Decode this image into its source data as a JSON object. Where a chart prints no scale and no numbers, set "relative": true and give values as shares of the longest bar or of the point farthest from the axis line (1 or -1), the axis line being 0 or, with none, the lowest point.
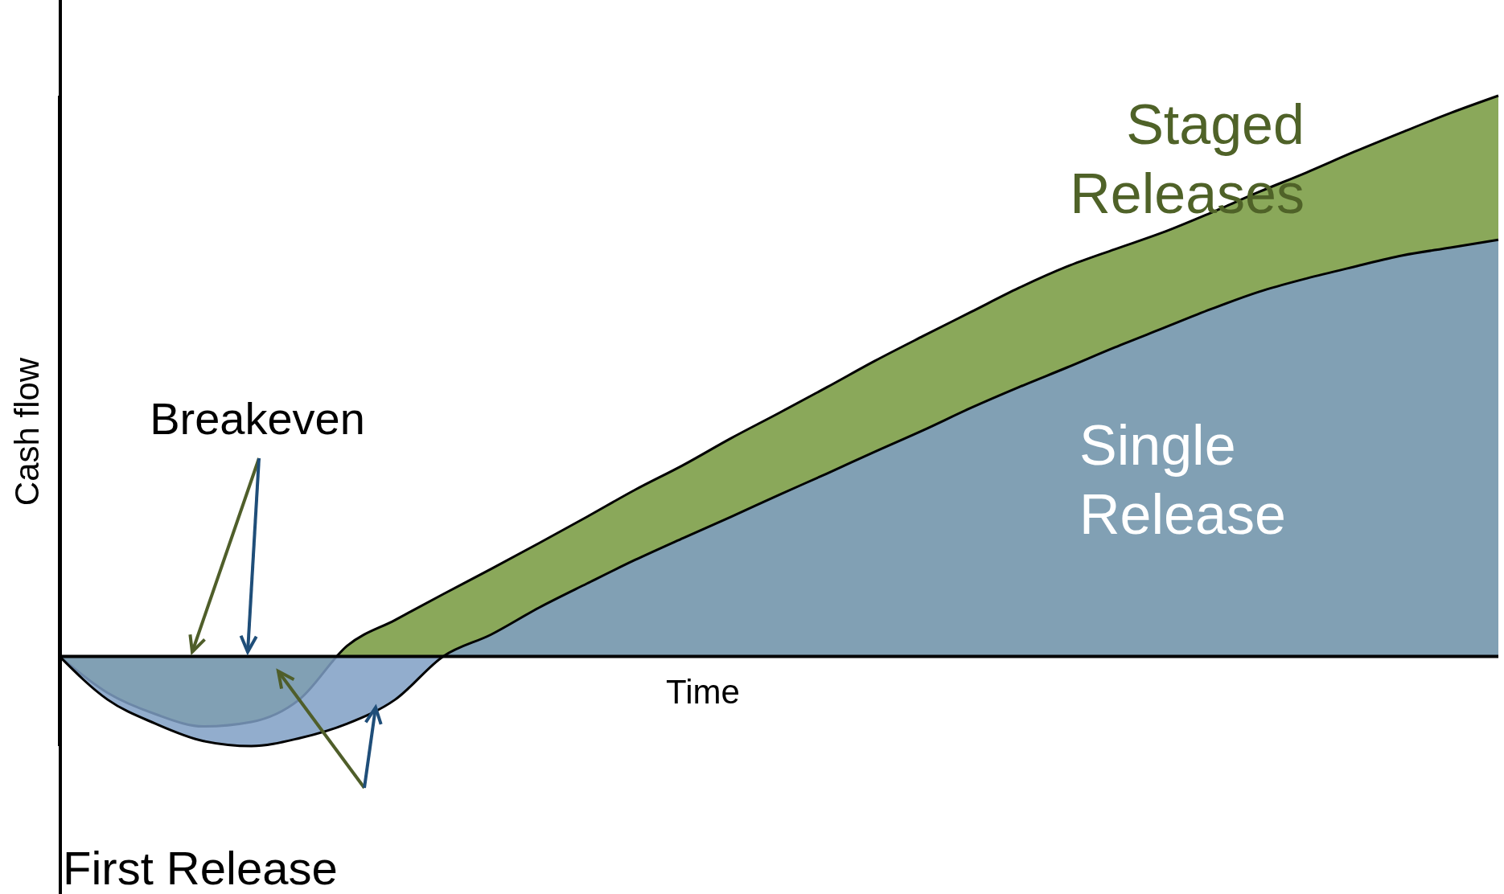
{
  "chart_data": {
    "type": "area",
    "relative": true,
    "xlabel": "Time",
    "ylabel": "Cash flow",
    "categories": [
      null,
      null,
      null,
      null,
      null,
      null,
      null,
      null,
      null,
      null,
      null,
      null,
      null,
      null,
      null,
      null,
      null,
      null,
      null,
      null,
      null,
      null,
      null,
      null,
      null,
      null,
      null,
      null,
      null,
      null,
      null
    ],
    "series": [
      {
        "name": "Staged Releases",
        "color": "#8aa85a",
        "values": [
          0,
          -0.065,
          -0.103,
          -0.125,
          -0.117,
          -0.077,
          0.019,
          0.065,
          0.111,
          0.156,
          0.202,
          0.249,
          0.297,
          0.341,
          0.389,
          0.434,
          0.48,
          0.527,
          0.571,
          0.614,
          0.657,
          0.695,
          0.726,
          0.756,
          0.791,
          0.828,
          0.863,
          0.9,
          0.935,
          0.969,
          1
        ]
      },
      {
        "name": "Single Release",
        "color": "#7f9fc4",
        "values": [
          0,
          -0.077,
          -0.12,
          -0.151,
          -0.16,
          -0.146,
          -0.12,
          -0.077,
          0,
          0.039,
          0.087,
          0.13,
          0.172,
          0.211,
          0.249,
          0.288,
          0.326,
          0.365,
          0.403,
          0.443,
          0.48,
          0.515,
          0.551,
          0.585,
          0.619,
          0.65,
          0.674,
          0.695,
          0.715,
          0.729,
          0.743
        ]
      }
    ],
    "annotations": [
      "Breakeven",
      "First Release"
    ],
    "legend": false,
    "grid": false
  }
}
